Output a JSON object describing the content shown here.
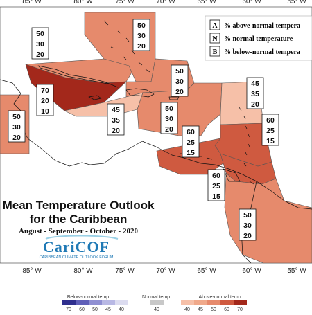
{
  "longitudes": [
    "85° W",
    "80° W",
    "75° W",
    "70° W",
    "65° W",
    "60° W",
    "55° W"
  ],
  "legend": {
    "rows": [
      {
        "letter": "A",
        "text": "% above-normal tempera"
      },
      {
        "letter": "N",
        "text": "% normal temperature"
      },
      {
        "letter": "B",
        "text": "% below-normal tempera"
      }
    ]
  },
  "regions": [
    {
      "id": "panama-westcuba",
      "values": [
        "50",
        "30",
        "20"
      ],
      "category": "above-50"
    },
    {
      "id": "bahamas-north",
      "values": [
        "50",
        "30",
        "20"
      ],
      "category": "above-50"
    },
    {
      "id": "central-america",
      "values": [
        "50",
        "30",
        "20"
      ],
      "category": "above-50"
    },
    {
      "id": "hispaniola",
      "values": [
        "50",
        "30",
        "20"
      ],
      "category": "above-50"
    },
    {
      "id": "cuba-west",
      "values": [
        "70",
        "20",
        "10"
      ],
      "category": "above-70"
    },
    {
      "id": "jamaica-cayman",
      "values": [
        "45",
        "35",
        "20"
      ],
      "category": "above-40"
    },
    {
      "id": "puerto-rico",
      "values": [
        "50",
        "30",
        "20"
      ],
      "category": "above-50"
    },
    {
      "id": "leewards",
      "values": [
        "45",
        "35",
        "20"
      ],
      "category": "above-40"
    },
    {
      "id": "abc-islands",
      "values": [
        "60",
        "25",
        "15"
      ],
      "category": "above-60"
    },
    {
      "id": "windwards",
      "values": [
        "60",
        "25",
        "15"
      ],
      "category": "above-60"
    },
    {
      "id": "trinidad",
      "values": [
        "60",
        "25",
        "15"
      ],
      "category": "above-60"
    },
    {
      "id": "guianas",
      "values": [
        "50",
        "30",
        "20"
      ],
      "category": "above-50"
    }
  ],
  "title": {
    "line1": "Mean Temperature Outlook",
    "line2": "for the Caribbean",
    "period": "August - September - October - 2020"
  },
  "logo": {
    "name": "CariCOF",
    "subtitle": "CARIBBEAN CLIMATE OUTLOOK FORUM"
  },
  "colorbar": {
    "below_label": "Below-normal temp.",
    "normal_label": "Normal temp.",
    "above_label": "Above-normal temp.",
    "below_ticks": [
      "70",
      "60",
      "50",
      "45",
      "40"
    ],
    "normal_ticks": [
      "40"
    ],
    "above_ticks": [
      "40",
      "45",
      "50",
      "60",
      "70"
    ]
  },
  "colors": {
    "above-40": "#f6c0a8",
    "above-45": "#f0a98a",
    "above-50": "#e68a6c",
    "above-60": "#cf5a40",
    "above-70": "#a3281b",
    "normal": "#c8c8c8",
    "below-40": "#dcdcf0",
    "below-45": "#b8b8e4",
    "below-50": "#8f8fd2",
    "below-60": "#5f5fb8",
    "below-70": "#2f2f8e"
  }
}
